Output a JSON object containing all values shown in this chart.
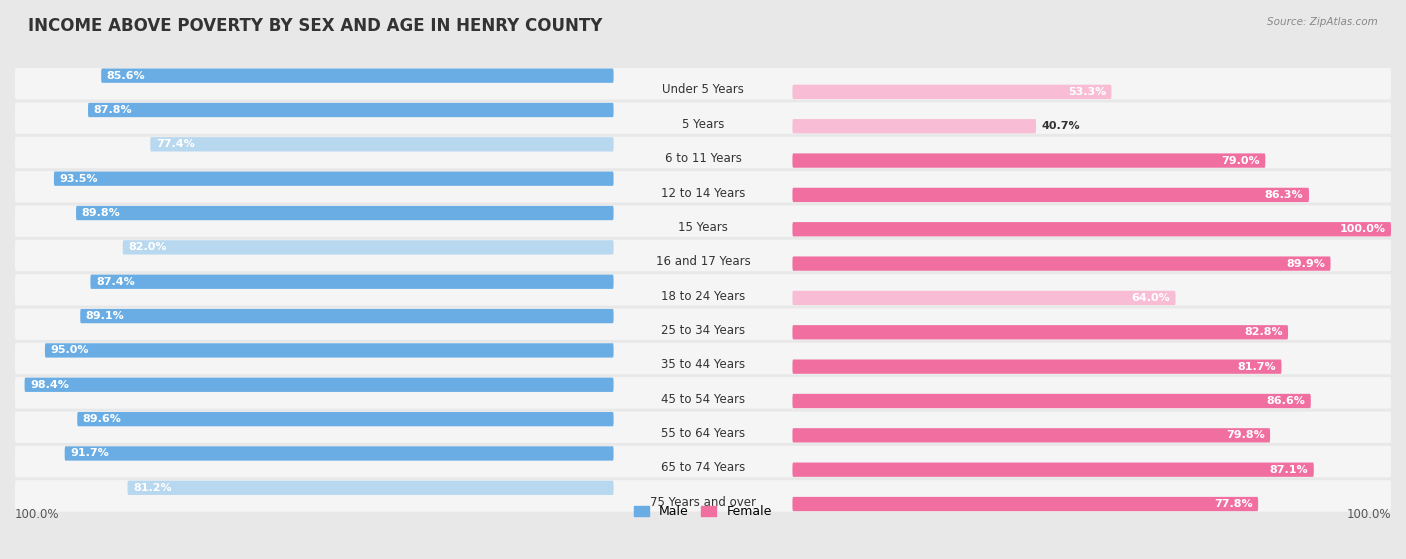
{
  "title": "INCOME ABOVE POVERTY BY SEX AND AGE IN HENRY COUNTY",
  "source": "Source: ZipAtlas.com",
  "categories": [
    "Under 5 Years",
    "5 Years",
    "6 to 11 Years",
    "12 to 14 Years",
    "15 Years",
    "16 and 17 Years",
    "18 to 24 Years",
    "25 to 34 Years",
    "35 to 44 Years",
    "45 to 54 Years",
    "55 to 64 Years",
    "65 to 74 Years",
    "75 Years and over"
  ],
  "male_values": [
    85.6,
    87.8,
    77.4,
    93.5,
    89.8,
    82.0,
    87.4,
    89.1,
    95.0,
    98.4,
    89.6,
    91.7,
    81.2
  ],
  "female_values": [
    53.3,
    40.7,
    79.0,
    86.3,
    100.0,
    89.9,
    64.0,
    82.8,
    81.7,
    86.6,
    79.8,
    87.1,
    77.8
  ],
  "male_color": "#6aade4",
  "male_color_light": "#b8d8f0",
  "female_color": "#f06fa0",
  "female_color_light": "#f8bdd4",
  "bg_color": "#e8e8e8",
  "row_bg_color": "#f5f5f5",
  "text_dark": "#333333",
  "text_mid": "#555555",
  "text_light": "#888888",
  "title_fontsize": 12,
  "label_fontsize": 8.5,
  "value_fontsize": 8,
  "legend_male": "Male",
  "legend_female": "Female"
}
